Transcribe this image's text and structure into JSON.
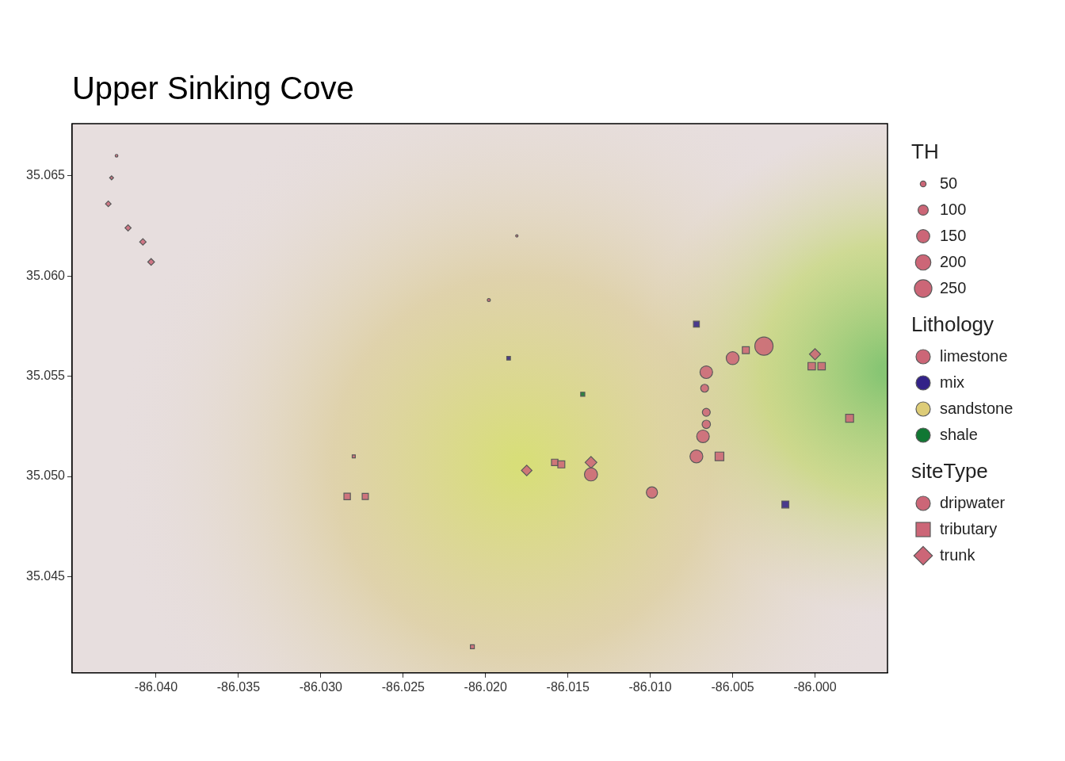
{
  "chart_data": {
    "type": "scatter",
    "title": "Upper Sinking Cove",
    "xlim": [
      -86.0451,
      -85.9956
    ],
    "ylim": [
      35.0402,
      35.0676
    ],
    "xticks": [
      {
        "value": -86.04,
        "label": "-86.040"
      },
      -86.035,
      {
        "value": -86.03,
        "label": "-86.030"
      },
      -86.025,
      {
        "value": -86.02,
        "label": "-86.020"
      },
      -86.015,
      {
        "value": -86.01,
        "label": "-86.010"
      },
      -86.005,
      {
        "value": -86.0,
        "label": "-86.000"
      }
    ],
    "yticks": [
      35.045,
      {
        "value": 35.05,
        "label": "35.050"
      },
      35.055,
      {
        "value": 35.06,
        "label": "35.060"
      },
      35.065
    ],
    "grid": false,
    "legend": "right",
    "points": {
      "x": [
        -86.0424,
        -86.0427,
        -86.0429,
        -86.0417,
        -86.0408,
        -86.0403,
        -86.0181,
        -86.0198,
        -86.0072,
        -86.0031,
        -86.0042,
        -86.005,
        -86.0,
        -86.0002,
        -85.9996,
        -86.0066,
        -86.0067,
        -86.0186,
        -86.0141,
        -86.0066,
        -86.0066,
        -86.0068,
        -85.9979,
        -86.0072,
        -86.0058,
        -86.028,
        -86.0175,
        -86.0158,
        -86.0154,
        -86.0136,
        -86.0136,
        -86.0099,
        -86.0018,
        -86.0284,
        -86.0273,
        -86.0208
      ],
      "y": [
        35.066,
        35.0649,
        35.0636,
        35.0624,
        35.0617,
        35.0607,
        35.062,
        35.0588,
        35.0576,
        35.0565,
        35.0563,
        35.0559,
        35.0561,
        35.0555,
        35.0555,
        35.0552,
        35.0544,
        35.0559,
        35.0541,
        35.0532,
        35.0526,
        35.052,
        35.0529,
        35.051,
        35.051,
        35.051,
        35.0503,
        35.0507,
        35.0506,
        35.0507,
        35.0501,
        35.0492,
        35.0486,
        35.049,
        35.049,
        35.0415
      ],
      "TH": [
        33,
        38,
        48,
        52,
        55,
        58,
        32,
        34,
        75,
        270,
        95,
        145,
        115,
        105,
        105,
        140,
        70,
        45,
        50,
        70,
        75,
        140,
        115,
        145,
        135,
        40,
        105,
        85,
        95,
        125,
        150,
        115,
        95,
        85,
        80,
        48
      ],
      "Lithology": [
        "limestone",
        "limestone",
        "limestone",
        "limestone",
        "limestone",
        "limestone",
        "limestone",
        "limestone",
        "mix",
        "limestone",
        "limestone",
        "limestone",
        "limestone",
        "limestone",
        "limestone",
        "limestone",
        "limestone",
        "mix",
        "shale",
        "limestone",
        "limestone",
        "limestone",
        "limestone",
        "limestone",
        "limestone",
        "limestone",
        "limestone",
        "limestone",
        "limestone",
        "limestone",
        "limestone",
        "limestone",
        "mix",
        "limestone",
        "limestone",
        "limestone"
      ],
      "siteType": [
        "dripwater",
        "trunk",
        "trunk",
        "trunk",
        "trunk",
        "trunk",
        "dripwater",
        "dripwater",
        "tributary",
        "dripwater",
        "tributary",
        "dripwater",
        "trunk",
        "tributary",
        "tributary",
        "dripwater",
        "dripwater",
        "tributary",
        "tributary",
        "dripwater",
        "dripwater",
        "dripwater",
        "tributary",
        "dripwater",
        "tributary",
        "tributary",
        "trunk",
        "tributary",
        "tributary",
        "trunk",
        "dripwater",
        "dripwater",
        "tributary",
        "tributary",
        "tributary",
        "tributary"
      ]
    },
    "size_legend": {
      "title": "TH",
      "values": [
        50,
        100,
        150,
        200,
        250
      ]
    },
    "color_legend": {
      "title": "Lithology",
      "categories": [
        "limestone",
        "mix",
        "sandstone",
        "shale"
      ],
      "colors": [
        "#cc6677",
        "#332288",
        "#ddcc77",
        "#117733"
      ]
    },
    "marker_legend": {
      "title": "siteType",
      "categories": [
        "dripwater",
        "tributary",
        "trunk"
      ],
      "markers": [
        "circle",
        "square",
        "diamond"
      ]
    }
  }
}
